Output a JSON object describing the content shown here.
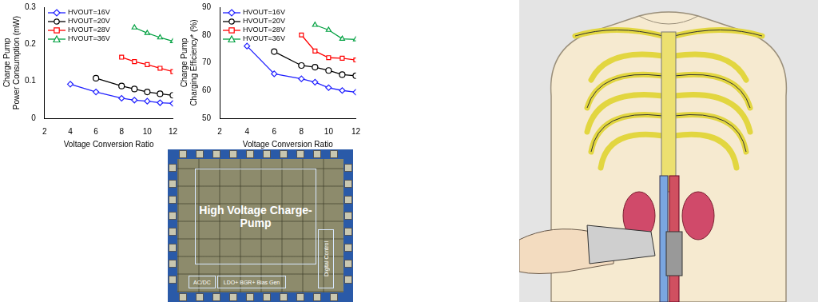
{
  "chart_data": [
    {
      "type": "line",
      "xlabel": "Voltage Conversion Ratio",
      "ylabel": [
        "Charge Pump",
        "Power Consumption (mW)"
      ],
      "x": [
        4,
        6,
        8,
        9,
        10,
        11,
        12
      ],
      "series": [
        {
          "name": "HVOUT=16V",
          "color": "#2020ff",
          "marker": "diamond",
          "values": [
            0.092,
            0.071,
            0.054,
            0.049,
            0.046,
            0.042,
            0.04
          ]
        },
        {
          "name": "HVOUT=20V",
          "color": "#000000",
          "marker": "circle",
          "values": [
            null,
            0.108,
            0.087,
            0.079,
            0.071,
            0.066,
            0.062
          ]
        },
        {
          "name": "HVOUT=28V",
          "color": "#ff0000",
          "marker": "square",
          "values": [
            null,
            null,
            0.165,
            0.153,
            0.145,
            0.135,
            0.126
          ]
        },
        {
          "name": "HVOUT=36V",
          "color": "#00a040",
          "marker": "triangle",
          "values": [
            null,
            null,
            null,
            0.245,
            0.23,
            0.218,
            0.208
          ]
        }
      ],
      "xlim": [
        2,
        12
      ],
      "xticks": [
        2,
        4,
        6,
        8,
        10,
        12
      ],
      "ylim": [
        0,
        0.3
      ],
      "yticks": [
        0,
        0.1,
        0.2,
        0.3
      ],
      "grid": false,
      "legend": "upper left"
    },
    {
      "type": "line",
      "xlabel": "Voltage Conversion Ratio",
      "ylabel": [
        "Charge Pump",
        "Charging Efficiency* (%)"
      ],
      "x": [
        4,
        6,
        8,
        9,
        10,
        11,
        12
      ],
      "series": [
        {
          "name": "HVOUT=16V",
          "color": "#2020ff",
          "marker": "diamond",
          "values": [
            76,
            66,
            64.2,
            63,
            61,
            60,
            59.4
          ]
        },
        {
          "name": "HVOUT=20V",
          "color": "#000000",
          "marker": "circle",
          "values": [
            null,
            74,
            69,
            68.4,
            67.2,
            65.7,
            65.3
          ]
        },
        {
          "name": "HVOUT=28V",
          "color": "#ff0000",
          "marker": "square",
          "values": [
            null,
            null,
            80,
            74.2,
            71.8,
            71.6,
            71
          ]
        },
        {
          "name": "HVOUT=36V",
          "color": "#00a040",
          "marker": "triangle",
          "values": [
            null,
            null,
            null,
            83.6,
            81.8,
            78.6,
            78.4
          ]
        }
      ],
      "xlim": [
        2,
        12
      ],
      "xticks": [
        2,
        4,
        6,
        8,
        10,
        12
      ],
      "ylim": [
        50,
        90
      ],
      "yticks": [
        50,
        60,
        70,
        80,
        90
      ],
      "grid": false,
      "legend": "upper left"
    }
  ],
  "die_photo": {
    "labels": {
      "main": "High Voltage Charge-Pump",
      "ac_dc": "AC/DC",
      "ldo": "LDO+ BGR+ Bias Gen",
      "digital": "Digital Control"
    }
  }
}
